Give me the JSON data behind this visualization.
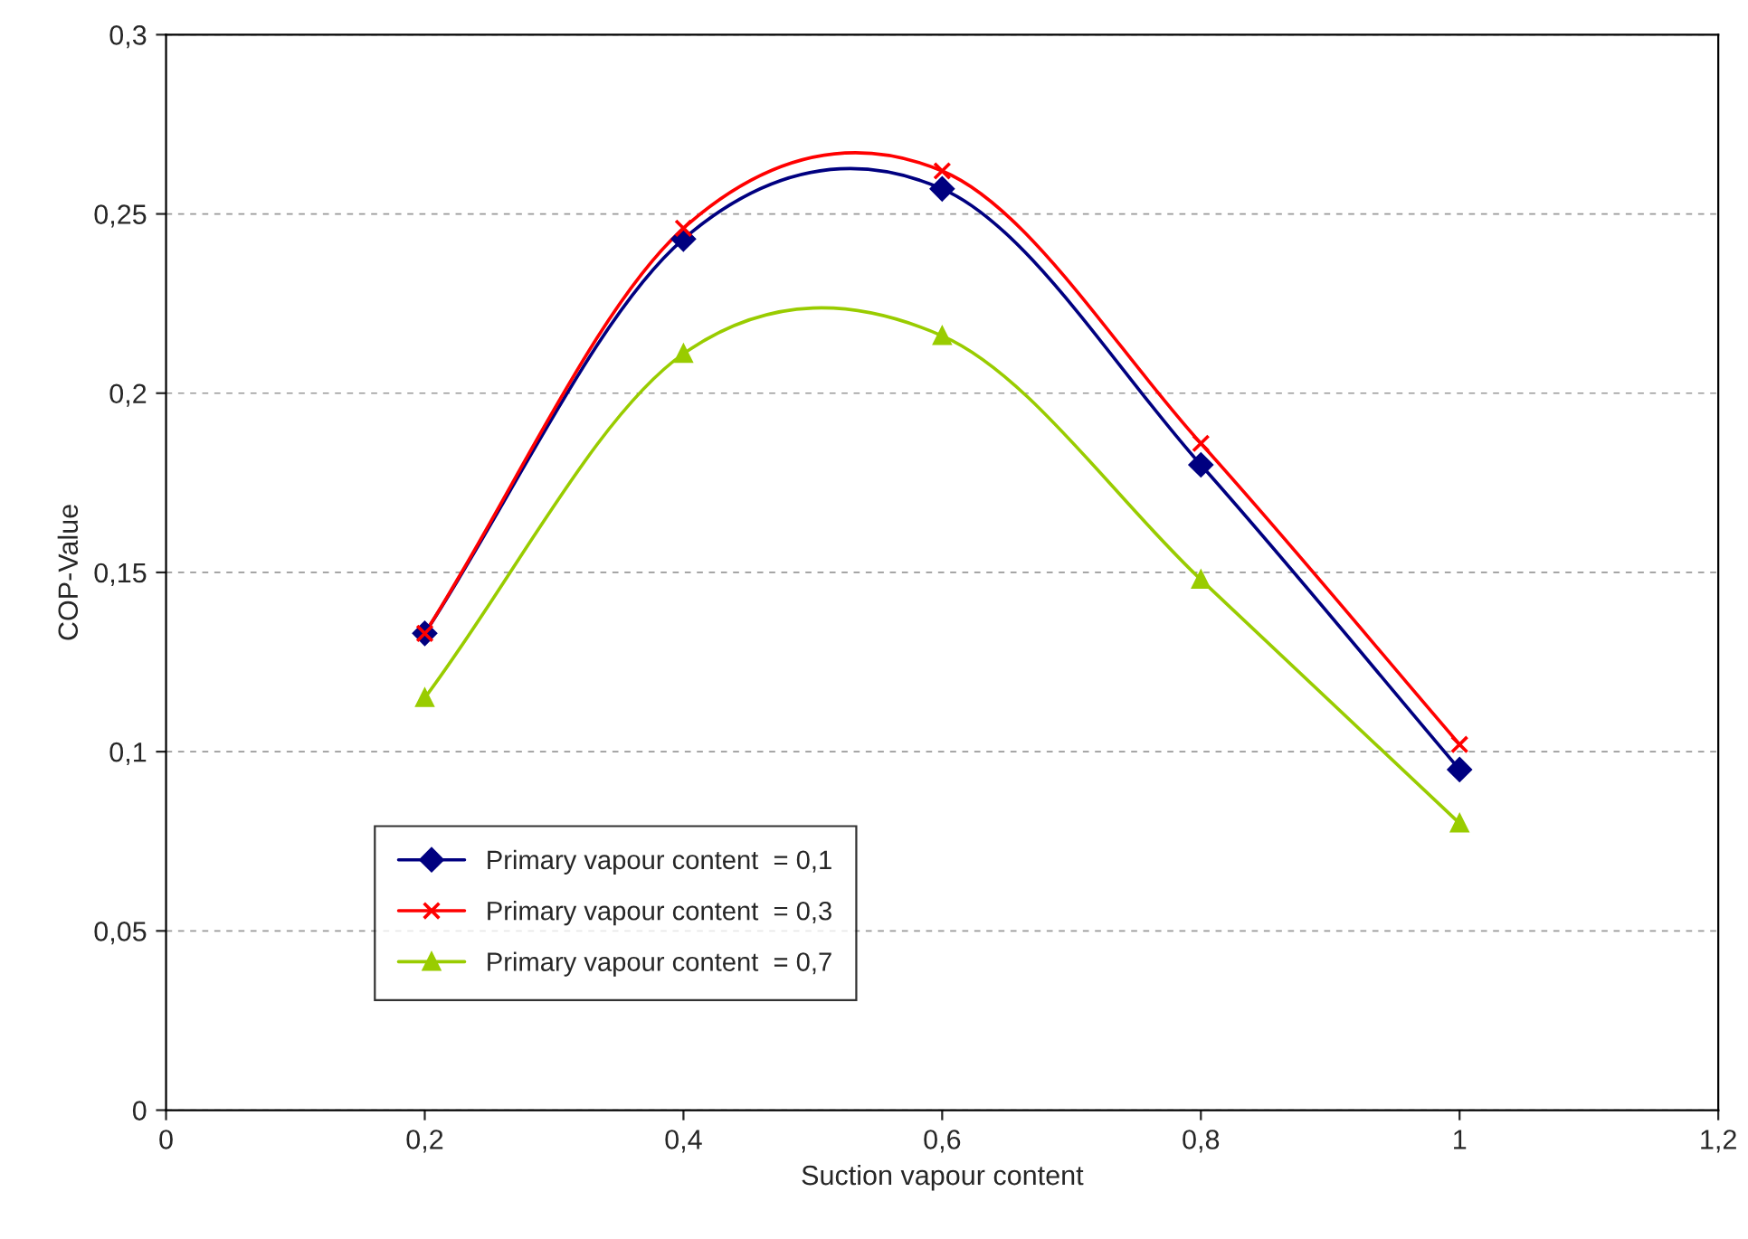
{
  "chart_data": {
    "type": "line",
    "xlabel": "Suction vapour content",
    "ylabel": "COP-Value",
    "x": [
      0.2,
      0.4,
      0.6,
      0.8,
      1
    ],
    "series": [
      {
        "name": "Primary vapour content  = 0,1",
        "color": "#000080",
        "marker": "diamond",
        "values": [
          0.133,
          0.243,
          0.257,
          0.18,
          0.095
        ]
      },
      {
        "name": "Primary vapour content  = 0,3",
        "color": "#ff0000",
        "marker": "cross",
        "values": [
          0.133,
          0.246,
          0.262,
          0.186,
          0.102
        ]
      },
      {
        "name": "Primary vapour content  = 0,7",
        "color": "#99cc00",
        "marker": "triangle",
        "values": [
          0.115,
          0.211,
          0.216,
          0.148,
          0.08
        ]
      }
    ],
    "xlim": [
      0,
      1.2
    ],
    "xticks": [
      0,
      {
        "value": 0.2,
        "label": "0,2"
      },
      {
        "value": 0.4,
        "label": "0,4"
      },
      {
        "value": 0.6,
        "label": "0,6"
      },
      {
        "value": 0.8,
        "label": "0,8"
      },
      1,
      {
        "value": 1.2,
        "label": "1,2"
      }
    ],
    "ylim": [
      0,
      0.3
    ],
    "yticks": [
      0,
      {
        "value": 0.05,
        "label": "0,05"
      },
      {
        "value": 0.1,
        "label": "0,1"
      },
      {
        "value": 0.15,
        "label": "0,15"
      },
      {
        "value": 0.2,
        "label": "0,2"
      },
      {
        "value": 0.25,
        "label": "0,25"
      },
      {
        "value": 0.3,
        "label": "0,3"
      }
    ],
    "grid": "y",
    "legend": "bottom left",
    "line_style": "solid"
  }
}
